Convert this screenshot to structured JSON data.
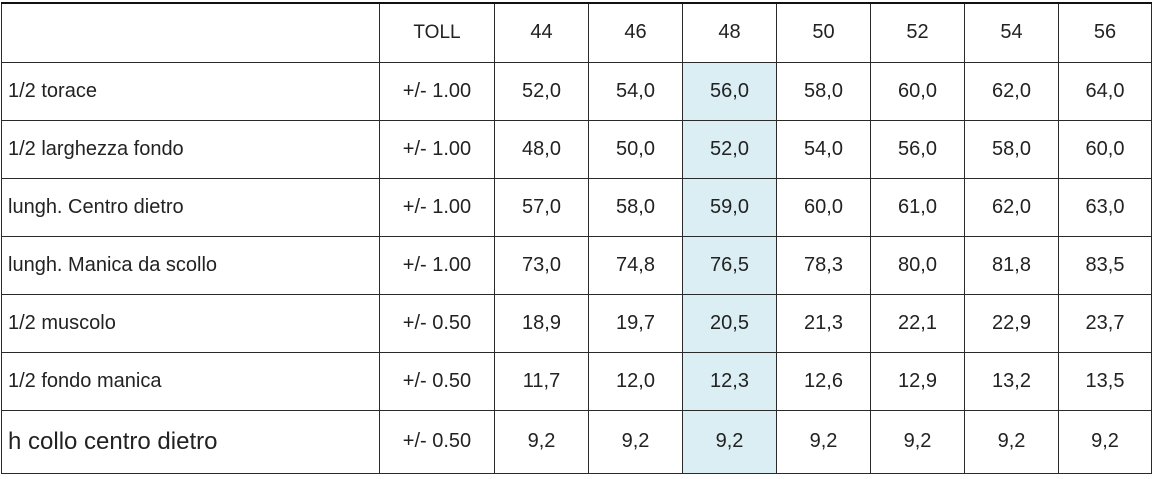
{
  "table": {
    "header": {
      "corner": "",
      "toll": "TOLL",
      "sizes": [
        "44",
        "46",
        "48",
        "50",
        "52",
        "54",
        "56"
      ]
    },
    "highlight_color": "#daeef3",
    "highlight_size": "48",
    "rows": [
      {
        "label": "1/2 torace",
        "toll": "+/- 1.00",
        "values": [
          "52,0",
          "54,0",
          "56,0",
          "58,0",
          "60,0",
          "62,0",
          "64,0"
        ]
      },
      {
        "label": "1/2 larghezza fondo",
        "toll": "+/- 1.00",
        "values": [
          "48,0",
          "50,0",
          "52,0",
          "54,0",
          "56,0",
          "58,0",
          "60,0"
        ]
      },
      {
        "label": "lungh. Centro dietro",
        "toll": "+/- 1.00",
        "values": [
          "57,0",
          "58,0",
          "59,0",
          "60,0",
          "61,0",
          "62,0",
          "63,0"
        ]
      },
      {
        "label": "lungh. Manica da scollo",
        "toll": "+/- 1.00",
        "values": [
          "73,0",
          "74,8",
          "76,5",
          "78,3",
          "80,0",
          "81,8",
          "83,5"
        ]
      },
      {
        "label": "1/2 muscolo",
        "toll": "+/- 0.50",
        "values": [
          "18,9",
          "19,7",
          "20,5",
          "21,3",
          "22,1",
          "22,9",
          "23,7"
        ]
      },
      {
        "label": "1/2 fondo manica",
        "toll": "+/- 0.50",
        "values": [
          "11,7",
          "12,0",
          "12,3",
          "12,6",
          "12,9",
          "13,2",
          "13,5"
        ]
      },
      {
        "label": "h collo centro dietro",
        "toll": "+/- 0.50",
        "values": [
          "9,2",
          "9,2",
          "9,2",
          "9,2",
          "9,2",
          "9,2",
          "9,2"
        ]
      }
    ]
  }
}
